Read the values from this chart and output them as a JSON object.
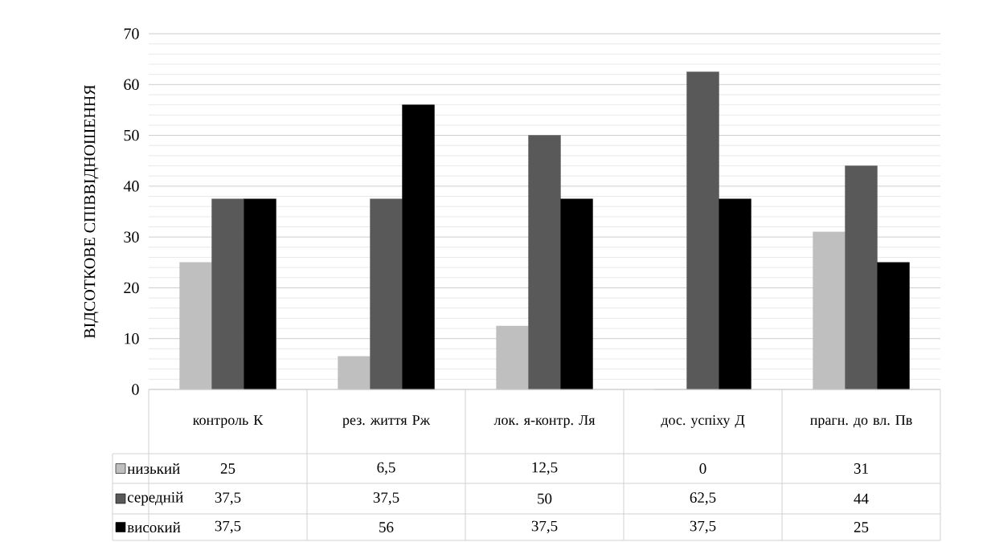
{
  "chart_data": {
    "type": "bar",
    "ylabel": "ВІДСОТКОВЕ СПІВВІДНОШЕННЯ",
    "categories": [
      "контроль К",
      "рез. життя Рж",
      "лок. я-контр. Ля",
      "дос. успіху Д",
      "прагн. до вл. Пв"
    ],
    "series": [
      {
        "name": "низький",
        "color": "#bfbfbf",
        "values": [
          25,
          6.5,
          12.5,
          0,
          31
        ],
        "value_labels": [
          "25",
          "6,5",
          "12,5",
          "0",
          "31"
        ]
      },
      {
        "name": "середній",
        "color": "#595959",
        "values": [
          37.5,
          37.5,
          50,
          62.5,
          44
        ],
        "value_labels": [
          "37,5",
          "37,5",
          "50",
          "62,5",
          "44"
        ]
      },
      {
        "name": "високий",
        "color": "#000000",
        "values": [
          37.5,
          56,
          37.5,
          37.5,
          25
        ],
        "value_labels": [
          "37,5",
          "56",
          "37,5",
          "37,5",
          "25"
        ]
      }
    ],
    "ylim": [
      0,
      70
    ],
    "yticks": [
      0,
      10,
      20,
      30,
      40,
      50,
      60,
      70
    ],
    "grid": "y",
    "legend": "bottom left"
  }
}
